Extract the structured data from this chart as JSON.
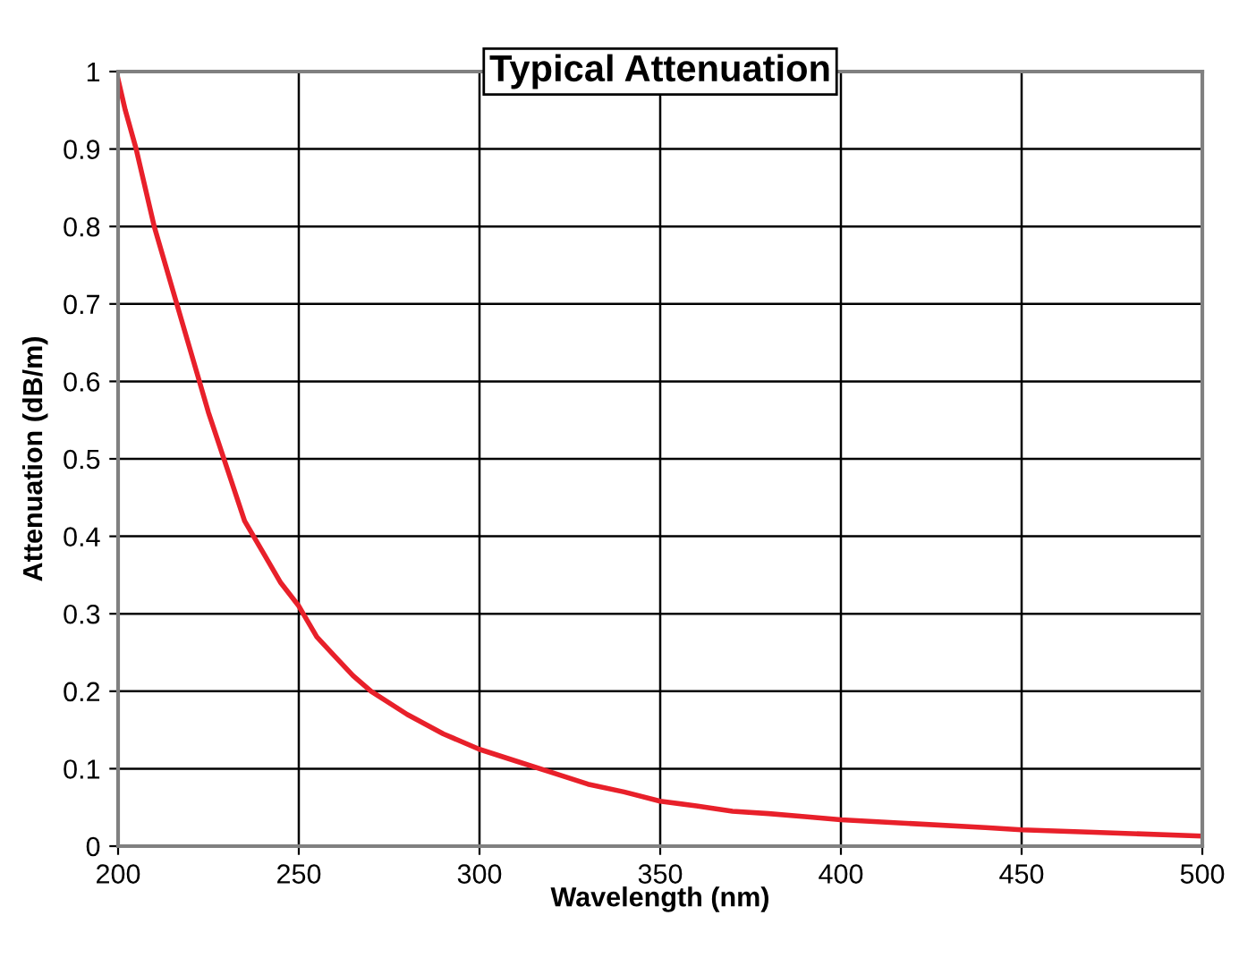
{
  "chart_data": {
    "type": "line",
    "title": "Typical Attenuation",
    "xlabel": "Wavelength (nm)",
    "ylabel": "Attenuation (dB/m)",
    "x": [
      200,
      202,
      205,
      210,
      215,
      220,
      225,
      230,
      235,
      240,
      245,
      250,
      255,
      260,
      265,
      270,
      280,
      290,
      300,
      310,
      320,
      330,
      340,
      350,
      360,
      370,
      380,
      390,
      400,
      420,
      440,
      450,
      470,
      500
    ],
    "series": [
      {
        "color": "#e8202a",
        "values": [
          0.99,
          0.95,
          0.9,
          0.8,
          0.72,
          0.64,
          0.56,
          0.49,
          0.42,
          0.38,
          0.34,
          0.31,
          0.27,
          0.245,
          0.22,
          0.2,
          0.17,
          0.145,
          0.125,
          0.11,
          0.095,
          0.08,
          0.07,
          0.058,
          0.052,
          0.045,
          0.042,
          0.038,
          0.034,
          0.029,
          0.024,
          0.021,
          0.018,
          0.013
        ]
      }
    ],
    "xlim": [
      200,
      500
    ],
    "ylim": [
      0,
      1
    ],
    "xticks": [
      200,
      250,
      300,
      350,
      400,
      450,
      500
    ],
    "yticks": [
      0,
      0.1,
      0.2,
      0.3,
      0.4,
      0.5,
      0.6,
      0.7,
      0.8,
      0.9,
      1
    ],
    "grid": true,
    "line_style": "solid",
    "marker": "none"
  }
}
